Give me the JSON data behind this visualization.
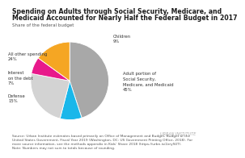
{
  "title_line1": "Spending on Adults through Social Security, Medicare, and",
  "title_line2": "Medicaid Accounted for Nearly Half the Federal Budget in 2017",
  "subtitle": "Share of the federal budget",
  "slices": [
    {
      "label": "Adult portion of\nSocial Security,\nMedicare, and Medicaid\n45%",
      "value": 45,
      "color": "#a8a8a8"
    },
    {
      "label": "Children\n9%",
      "value": 9,
      "color": "#1ab7ea"
    },
    {
      "label": "All other spending\n24%",
      "value": 24,
      "color": "#d3d3d3"
    },
    {
      "label": "Interest\non the debt\n7%",
      "value": 7,
      "color": "#e8198b"
    },
    {
      "label": "Defense\n15%",
      "value": 15,
      "color": "#f5a623"
    }
  ],
  "source_line1": "Source: Urban Institute estimates based primarily on Office of Management and Budget, Budget of the",
  "source_line2": "United States Government, Fiscal Year 2019 (Washington, DC: US Government Printing Office, 2018). For",
  "source_line3": "more source information, see the methods appendix in Kids’ Share 2018 (https://urbn.is/2zry94T).",
  "source_line4": "Note: Numbers may not sum to totals because of rounding.",
  "watermark": "URBAN INSTITUTE",
  "background_color": "#ffffff",
  "title_fontsize": 5.6,
  "subtitle_fontsize": 4.0,
  "label_fontsize": 3.8,
  "source_fontsize": 3.1,
  "watermark_fontsize": 3.5
}
